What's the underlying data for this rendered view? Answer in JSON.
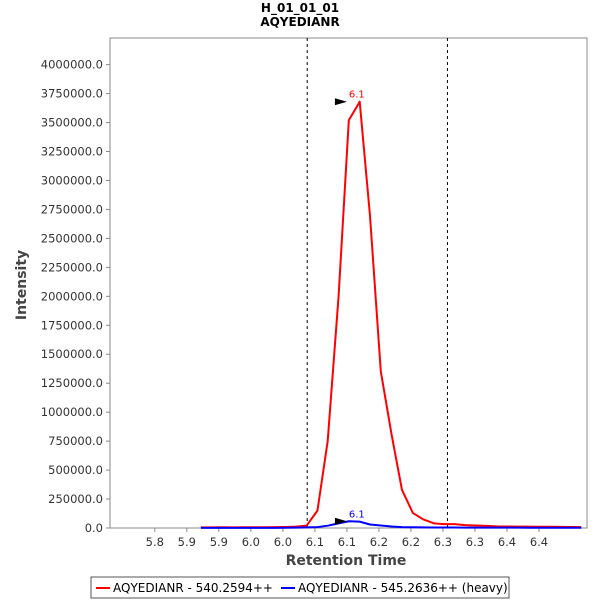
{
  "chart_data": {
    "type": "line",
    "title": "H_01_01_01",
    "subtitle": "AQYEDIANR",
    "xlabel": "Retention Time",
    "ylabel": "Intensity",
    "xlim": [
      5.73,
      6.475
    ],
    "ylim": [
      0,
      4230000
    ],
    "x_tick_labels": [
      "5.8",
      "5.9",
      "5.9",
      "6.0",
      "6.0",
      "6.1",
      "6.1",
      "6.2",
      "6.2",
      "6.3",
      "6.3",
      "6.4",
      "6.4"
    ],
    "x_tick_values": [
      5.8,
      5.85,
      5.9,
      5.95,
      6.0,
      6.05,
      6.1,
      6.15,
      6.2,
      6.25,
      6.3,
      6.35,
      6.4
    ],
    "y_tick_labels": [
      "0.0",
      "250000.0",
      "500000.0",
      "750000.0",
      "1000000.0",
      "1250000.0",
      "1500000.0",
      "1750000.0",
      "2000000.0",
      "2250000.0",
      "2500000.0",
      "2750000.0",
      "3000000.0",
      "3250000.0",
      "3500000.0",
      "3750000.0",
      "4000000.0"
    ],
    "y_tick_values": [
      0,
      250000,
      500000,
      750000,
      1000000,
      1250000,
      1500000,
      1750000,
      2000000,
      2250000,
      2500000,
      2750000,
      3000000,
      3250000,
      3500000,
      3750000,
      4000000
    ],
    "grid": false,
    "legend_position": "bottom",
    "boundary_lines_x": [
      6.038,
      6.257
    ],
    "series": [
      {
        "name": "AQYEDIANR - 540.2594++",
        "color": "#ff0000",
        "x": [
          5.872,
          5.888,
          5.905,
          5.922,
          5.938,
          5.955,
          5.971,
          5.988,
          6.004,
          6.021,
          6.037,
          6.054,
          6.07,
          6.087,
          6.103,
          6.12,
          6.136,
          6.153,
          6.17,
          6.186,
          6.203,
          6.219,
          6.236,
          6.252,
          6.268,
          6.285,
          6.301,
          6.318,
          6.335,
          6.351,
          6.368,
          6.384,
          6.401,
          6.417,
          6.434,
          6.45,
          6.466
        ],
        "values": [
          5000,
          5000,
          6000,
          5000,
          7000,
          6000,
          7000,
          8000,
          9000,
          12000,
          20000,
          150000,
          750000,
          2000000,
          3520000,
          3680000,
          2700000,
          1350000,
          800000,
          330000,
          130000,
          75000,
          40000,
          33000,
          33000,
          25000,
          22000,
          18000,
          14000,
          13000,
          12000,
          12000,
          11000,
          11000,
          10000,
          9000,
          8000
        ],
        "peak_label": "6.1",
        "peak_x": 6.1,
        "peak_y": 3680000
      },
      {
        "name": "AQYEDIANR - 545.2636++ (heavy)",
        "color": "#0000ff",
        "x": [
          5.872,
          5.888,
          5.905,
          5.922,
          5.938,
          5.955,
          5.971,
          5.988,
          6.004,
          6.021,
          6.037,
          6.054,
          6.07,
          6.087,
          6.103,
          6.12,
          6.136,
          6.153,
          6.17,
          6.186,
          6.203,
          6.219,
          6.236,
          6.252,
          6.268,
          6.285,
          6.301,
          6.318,
          6.335,
          6.351,
          6.368,
          6.384,
          6.401,
          6.417,
          6.434,
          6.45,
          6.466
        ],
        "values": [
          1000,
          1000,
          1000,
          1000,
          1000,
          1000,
          1000,
          1500,
          2000,
          3000,
          5000,
          8000,
          20000,
          40000,
          58000,
          55000,
          30000,
          22000,
          13000,
          8000,
          6000,
          5000,
          4500,
          4000,
          4000,
          3500,
          3500,
          3000,
          3000,
          3000,
          3000,
          2500,
          2500,
          2500,
          2500,
          2000,
          2000
        ],
        "peak_label": "6.1",
        "peak_x": 6.1,
        "peak_y": 58000
      }
    ]
  }
}
